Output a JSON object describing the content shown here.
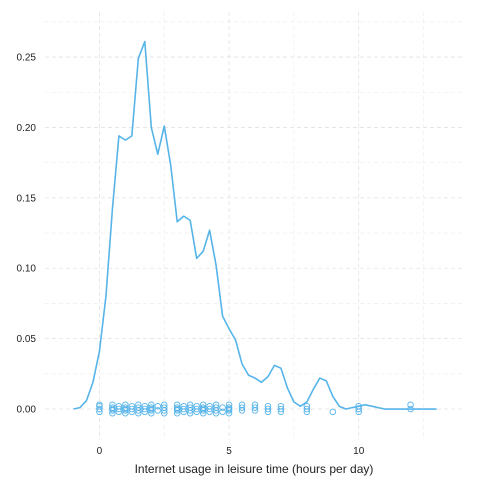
{
  "chart_data": {
    "type": "line",
    "title": "",
    "xlabel": "Internet usage in leisure time (hours per day)",
    "ylabel": "",
    "xlim": [
      -2.1,
      14.1
    ],
    "ylim": [
      -0.022,
      0.282
    ],
    "x_ticks": [
      0,
      5,
      10
    ],
    "x_tick_labels": [
      "0",
      "5",
      "10"
    ],
    "y_ticks": [
      0,
      0.05,
      0.1,
      0.15,
      0.2,
      0.25
    ],
    "y_tick_labels": [
      "0.00",
      "0.05",
      "0.10",
      "0.15",
      "0.20",
      "0.25"
    ],
    "grid": true,
    "color": "#56B4E9",
    "series": [
      {
        "kind": "density-line",
        "x": [
          -1.0,
          -0.75,
          -0.5,
          -0.25,
          0.0,
          0.25,
          0.5,
          0.75,
          1.0,
          1.25,
          1.5,
          1.75,
          2.0,
          2.25,
          2.5,
          2.75,
          3.0,
          3.25,
          3.5,
          3.75,
          4.0,
          4.25,
          4.5,
          4.75,
          5.0,
          5.25,
          5.5,
          5.75,
          6.0,
          6.25,
          6.5,
          6.75,
          7.0,
          7.25,
          7.5,
          7.75,
          8.0,
          8.25,
          8.5,
          8.75,
          9.0,
          9.25,
          9.5,
          9.75,
          10.0,
          10.25,
          10.5,
          10.75,
          11.0,
          11.25,
          11.5,
          11.75,
          12.0,
          12.25,
          12.5,
          12.75,
          13.0
        ],
        "y": [
          0.0,
          0.001,
          0.006,
          0.019,
          0.041,
          0.08,
          0.142,
          0.194,
          0.191,
          0.194,
          0.249,
          0.261,
          0.2,
          0.181,
          0.201,
          0.173,
          0.133,
          0.137,
          0.134,
          0.107,
          0.112,
          0.127,
          0.102,
          0.066,
          0.057,
          0.049,
          0.032,
          0.024,
          0.022,
          0.019,
          0.023,
          0.031,
          0.029,
          0.015,
          0.005,
          0.002,
          0.005,
          0.014,
          0.022,
          0.02,
          0.009,
          0.002,
          0.0,
          0.001,
          0.002,
          0.003,
          0.002,
          0.001,
          0.0,
          0.0,
          0.0,
          0.0,
          0.0,
          0.0,
          0.0,
          0.0,
          0.0
        ]
      },
      {
        "kind": "rug-points",
        "x": [
          0,
          0,
          0,
          0,
          0.5,
          0.5,
          0.5,
          0.5,
          0.5,
          0.75,
          0.75,
          0.75,
          1,
          1,
          1,
          1,
          1,
          1.25,
          1.25,
          1.25,
          1.5,
          1.5,
          1.5,
          1.5,
          1.75,
          1.75,
          1.75,
          2,
          2,
          2,
          2,
          2,
          2.25,
          2.25,
          2.5,
          2.5,
          2.5,
          2.5,
          3,
          3,
          3,
          3,
          3,
          3.25,
          3.25,
          3.25,
          3.5,
          3.5,
          3.5,
          3.5,
          3.75,
          3.75,
          3.75,
          4,
          4,
          4,
          4,
          4,
          4.25,
          4.25,
          4.25,
          4.5,
          4.5,
          4.5,
          4.5,
          4.75,
          4.75,
          5,
          5,
          5,
          5,
          5,
          5.5,
          5.5,
          5.5,
          6,
          6,
          6,
          6.5,
          6.5,
          6.5,
          7,
          7,
          7,
          8,
          8,
          8,
          9,
          10,
          10,
          10,
          12,
          12
        ],
        "y": [
          0.003,
          0.0,
          -0.002,
          0.002,
          0.003,
          0.001,
          -0.001,
          -0.003,
          0.0,
          0.002,
          0.0,
          -0.002,
          0.003,
          0.001,
          -0.001,
          -0.003,
          0.0,
          0.002,
          0.0,
          -0.002,
          0.003,
          0.001,
          -0.001,
          -0.003,
          0.002,
          0.0,
          -0.002,
          0.003,
          0.001,
          -0.001,
          -0.003,
          0.0,
          0.002,
          -0.001,
          0.003,
          0.001,
          -0.001,
          -0.003,
          0.003,
          0.001,
          -0.001,
          -0.003,
          0.0,
          0.002,
          0.0,
          -0.002,
          0.003,
          0.001,
          -0.001,
          -0.003,
          0.002,
          0.0,
          -0.002,
          0.003,
          0.001,
          -0.001,
          -0.003,
          0.0,
          0.002,
          0.0,
          -0.002,
          0.003,
          0.001,
          -0.001,
          -0.003,
          0.001,
          -0.002,
          0.003,
          0.001,
          -0.001,
          -0.003,
          0.0,
          0.003,
          0.001,
          -0.001,
          0.003,
          0.001,
          -0.001,
          0.002,
          0.0,
          -0.002,
          0.002,
          0.0,
          -0.002,
          0.002,
          0.0,
          -0.002,
          -0.002,
          0.002,
          0.0,
          -0.002,
          0.003,
          0.0
        ]
      }
    ]
  }
}
